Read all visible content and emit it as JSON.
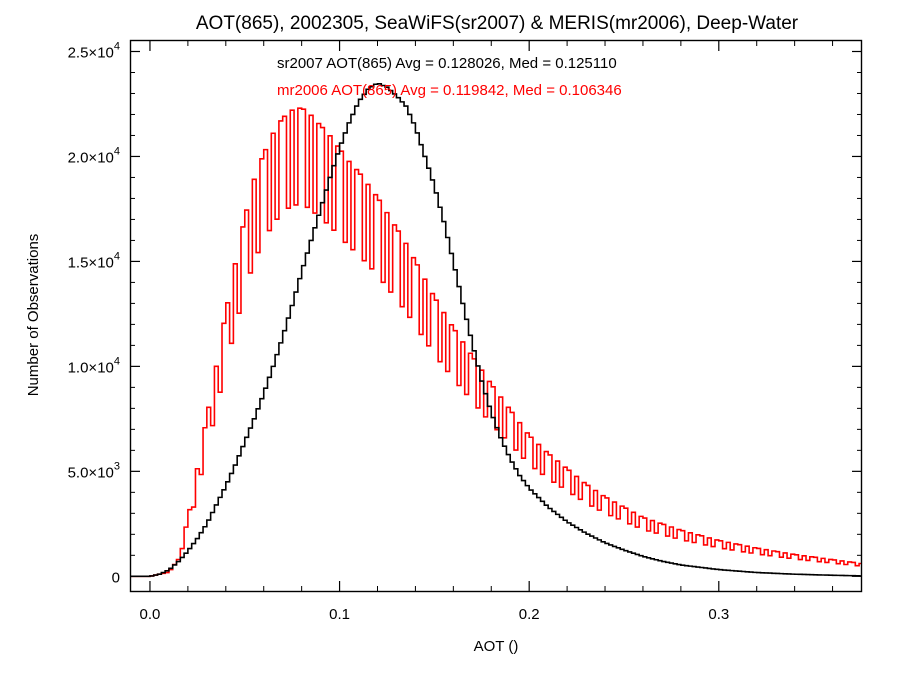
{
  "chart_data": {
    "type": "line",
    "step": true,
    "title": "AOT(865), 2002305, SeaWiFS(sr2007) & MERIS(mr2006), Deep-Water",
    "xlabel": "AOT ()",
    "ylabel": "Number of Observations",
    "xlim": [
      -0.01,
      0.375
    ],
    "ylim": [
      -700,
      25500
    ],
    "xticks": [
      {
        "value": 0.0,
        "label": "0.0"
      },
      {
        "value": 0.1,
        "label": "0.1"
      },
      {
        "value": 0.2,
        "label": "0.2"
      },
      {
        "value": 0.3,
        "label": "0.3"
      }
    ],
    "yticks": [
      {
        "value": 0,
        "mant": "0",
        "exp": ""
      },
      {
        "value": 5000,
        "mant": "5.0×10",
        "exp": "3"
      },
      {
        "value": 10000,
        "mant": "1.0×10",
        "exp": "4"
      },
      {
        "value": 15000,
        "mant": "1.5×10",
        "exp": "4"
      },
      {
        "value": 20000,
        "mant": "2.0×10",
        "exp": "4"
      },
      {
        "value": 25000,
        "mant": "2.5×10",
        "exp": "4"
      }
    ],
    "annotations": [
      {
        "text": "sr2007 AOT(865) Avg = 0.128026, Med = 0.125110",
        "color": "#000000"
      },
      {
        "text": "mr2006 AOT(865) Avg = 0.119842, Med = 0.106346",
        "color": "#ff0000"
      }
    ],
    "series": [
      {
        "key": "sr2007",
        "color": "#000000",
        "bin_width": 0.002,
        "x": [
          0.0,
          0.005,
          0.01,
          0.015,
          0.02,
          0.025,
          0.03,
          0.035,
          0.04,
          0.045,
          0.05,
          0.055,
          0.06,
          0.065,
          0.07,
          0.075,
          0.08,
          0.085,
          0.09,
          0.095,
          0.1,
          0.105,
          0.11,
          0.115,
          0.12,
          0.125,
          0.13,
          0.135,
          0.14,
          0.145,
          0.15,
          0.155,
          0.16,
          0.165,
          0.17,
          0.175,
          0.18,
          0.185,
          0.19,
          0.195,
          0.2,
          0.21,
          0.22,
          0.23,
          0.24,
          0.25,
          0.26,
          0.27,
          0.28,
          0.3,
          0.32,
          0.34,
          0.36,
          0.375
        ],
        "y": [
          0,
          100,
          300,
          700,
          1200,
          1800,
          2500,
          3400,
          4300,
          5300,
          6400,
          7500,
          8700,
          10000,
          11400,
          12900,
          14500,
          16000,
          17500,
          19000,
          20400,
          21600,
          22600,
          23200,
          23500,
          23300,
          22900,
          22400,
          21400,
          20000,
          18600,
          16900,
          15000,
          13000,
          11100,
          9300,
          7800,
          6600,
          5600,
          4800,
          4200,
          3300,
          2600,
          2050,
          1600,
          1250,
          950,
          720,
          540,
          320,
          180,
          100,
          50,
          20
        ]
      },
      {
        "key": "mr2006",
        "color": "#ff0000",
        "bin_width": 0.002,
        "x": [
          0.0,
          0.01,
          0.015,
          0.02,
          0.025,
          0.03,
          0.035,
          0.04,
          0.045,
          0.05,
          0.055,
          0.06,
          0.065,
          0.07,
          0.075,
          0.08,
          0.085,
          0.09,
          0.095,
          0.1,
          0.105,
          0.11,
          0.115,
          0.12,
          0.125,
          0.13,
          0.135,
          0.14,
          0.145,
          0.15,
          0.16,
          0.17,
          0.18,
          0.19,
          0.2,
          0.21,
          0.22,
          0.23,
          0.24,
          0.25,
          0.26,
          0.28,
          0.3,
          0.32,
          0.34,
          0.36,
          0.375
        ],
        "y": [
          0,
          200,
          800,
          2200,
          4200,
          6200,
          8200,
          10300,
          12200,
          14000,
          15500,
          16500,
          17300,
          17900,
          18200,
          18300,
          18000,
          17600,
          17200,
          16700,
          16200,
          15800,
          15300,
          14800,
          14200,
          13600,
          13000,
          12300,
          11600,
          10900,
          9700,
          8600,
          7500,
          6500,
          5500,
          4800,
          4200,
          3600,
          3100,
          2700,
          2300,
          1800,
          1400,
          1100,
          850,
          650,
          500
        ]
      }
    ]
  }
}
